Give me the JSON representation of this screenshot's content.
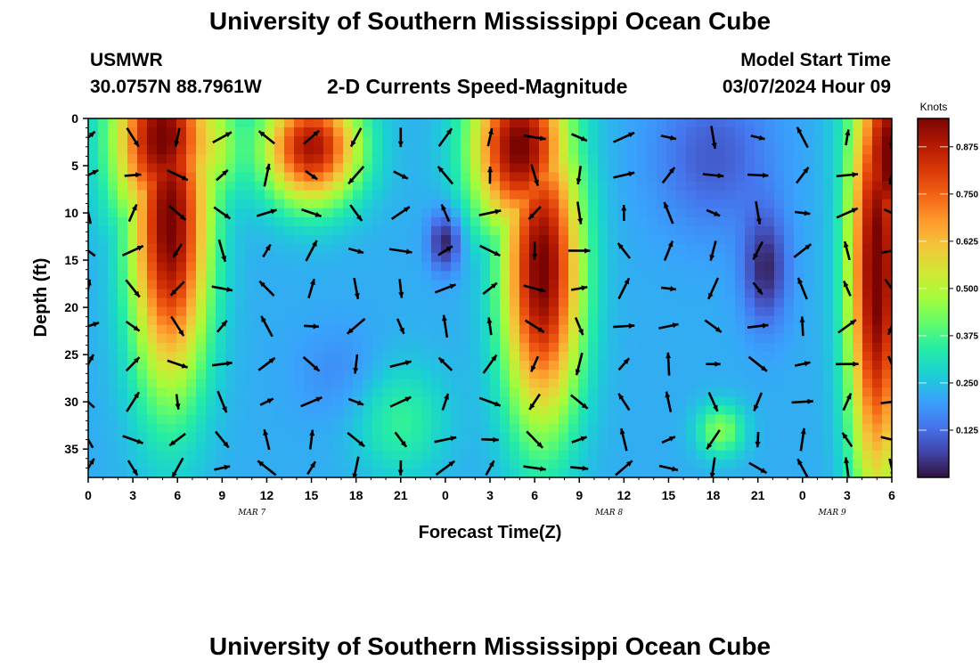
{
  "title": "University of Southern Mississippi Ocean Cube",
  "footer_title": "University of Southern Mississippi Ocean Cube",
  "station": {
    "id": "USMWR",
    "coords": "30.0757N  88.7961W"
  },
  "subtitle": "2-D Currents Speed-Magnitude",
  "model_start": {
    "label": "Model Start Time",
    "value": "03/07/2024 Hour 09"
  },
  "colors": {
    "scale": [
      "#30123b",
      "#4145ab",
      "#4675ed",
      "#39a2fc",
      "#1bcfd4",
      "#24eca6",
      "#61fc6c",
      "#a4fc3b",
      "#d1e834",
      "#f3c63a",
      "#fe9b2d",
      "#f36315",
      "#d93806",
      "#b11901",
      "#7a0402"
    ],
    "arrow": "#000000"
  },
  "chart_data": {
    "type": "heatmap",
    "xlabel": "Forecast Time(Z)",
    "ylabel": "Depth (ft)",
    "x_ticks": [
      "0",
      "3",
      "6",
      "9",
      "12",
      "15",
      "18",
      "21",
      "0",
      "3",
      "6",
      "9",
      "12",
      "15",
      "18",
      "21",
      "0",
      "3",
      "6"
    ],
    "x_day_labels": [
      {
        "label": "MAR 7",
        "hour": 11
      },
      {
        "label": "MAR 8",
        "hour": 35
      },
      {
        "label": "MAR 9",
        "hour": 50
      }
    ],
    "xlim_hours": [
      0,
      54
    ],
    "y_ticks": [
      "0",
      "5",
      "10",
      "15",
      "20",
      "25",
      "30",
      "35"
    ],
    "ylim_ft": [
      0,
      38
    ],
    "y_inverted": true,
    "colorbar": {
      "unit": "Knots",
      "ticks": [
        "0.875",
        "0.750",
        "0.625",
        "0.500",
        "0.375",
        "0.250",
        "0.125"
      ],
      "range": [
        0,
        0.95
      ]
    },
    "speed_features_knots": [
      {
        "hour": 5.5,
        "depth": 10,
        "speed": 0.93
      },
      {
        "hour": 15,
        "depth": 4,
        "speed": 0.88
      },
      {
        "hour": 30.5,
        "depth": 16,
        "speed": 0.93
      },
      {
        "hour": 53,
        "depth": 15,
        "speed": 0.95
      },
      {
        "hour": 24,
        "depth": 13,
        "speed": 0.02
      },
      {
        "hour": 45.5,
        "depth": 17,
        "speed": 0.03
      },
      {
        "hour": 42.5,
        "depth": 33,
        "speed": 0.45
      },
      {
        "hour": 21,
        "depth": 33,
        "speed": 0.38
      }
    ],
    "vector_hours": [
      0,
      3,
      6,
      9,
      12,
      15,
      18,
      21,
      24,
      27,
      30,
      33,
      36,
      39,
      42,
      45,
      48,
      51,
      54
    ],
    "vector_depths_ft": [
      2,
      6,
      10,
      14,
      18,
      22,
      26,
      30,
      34,
      37
    ]
  }
}
